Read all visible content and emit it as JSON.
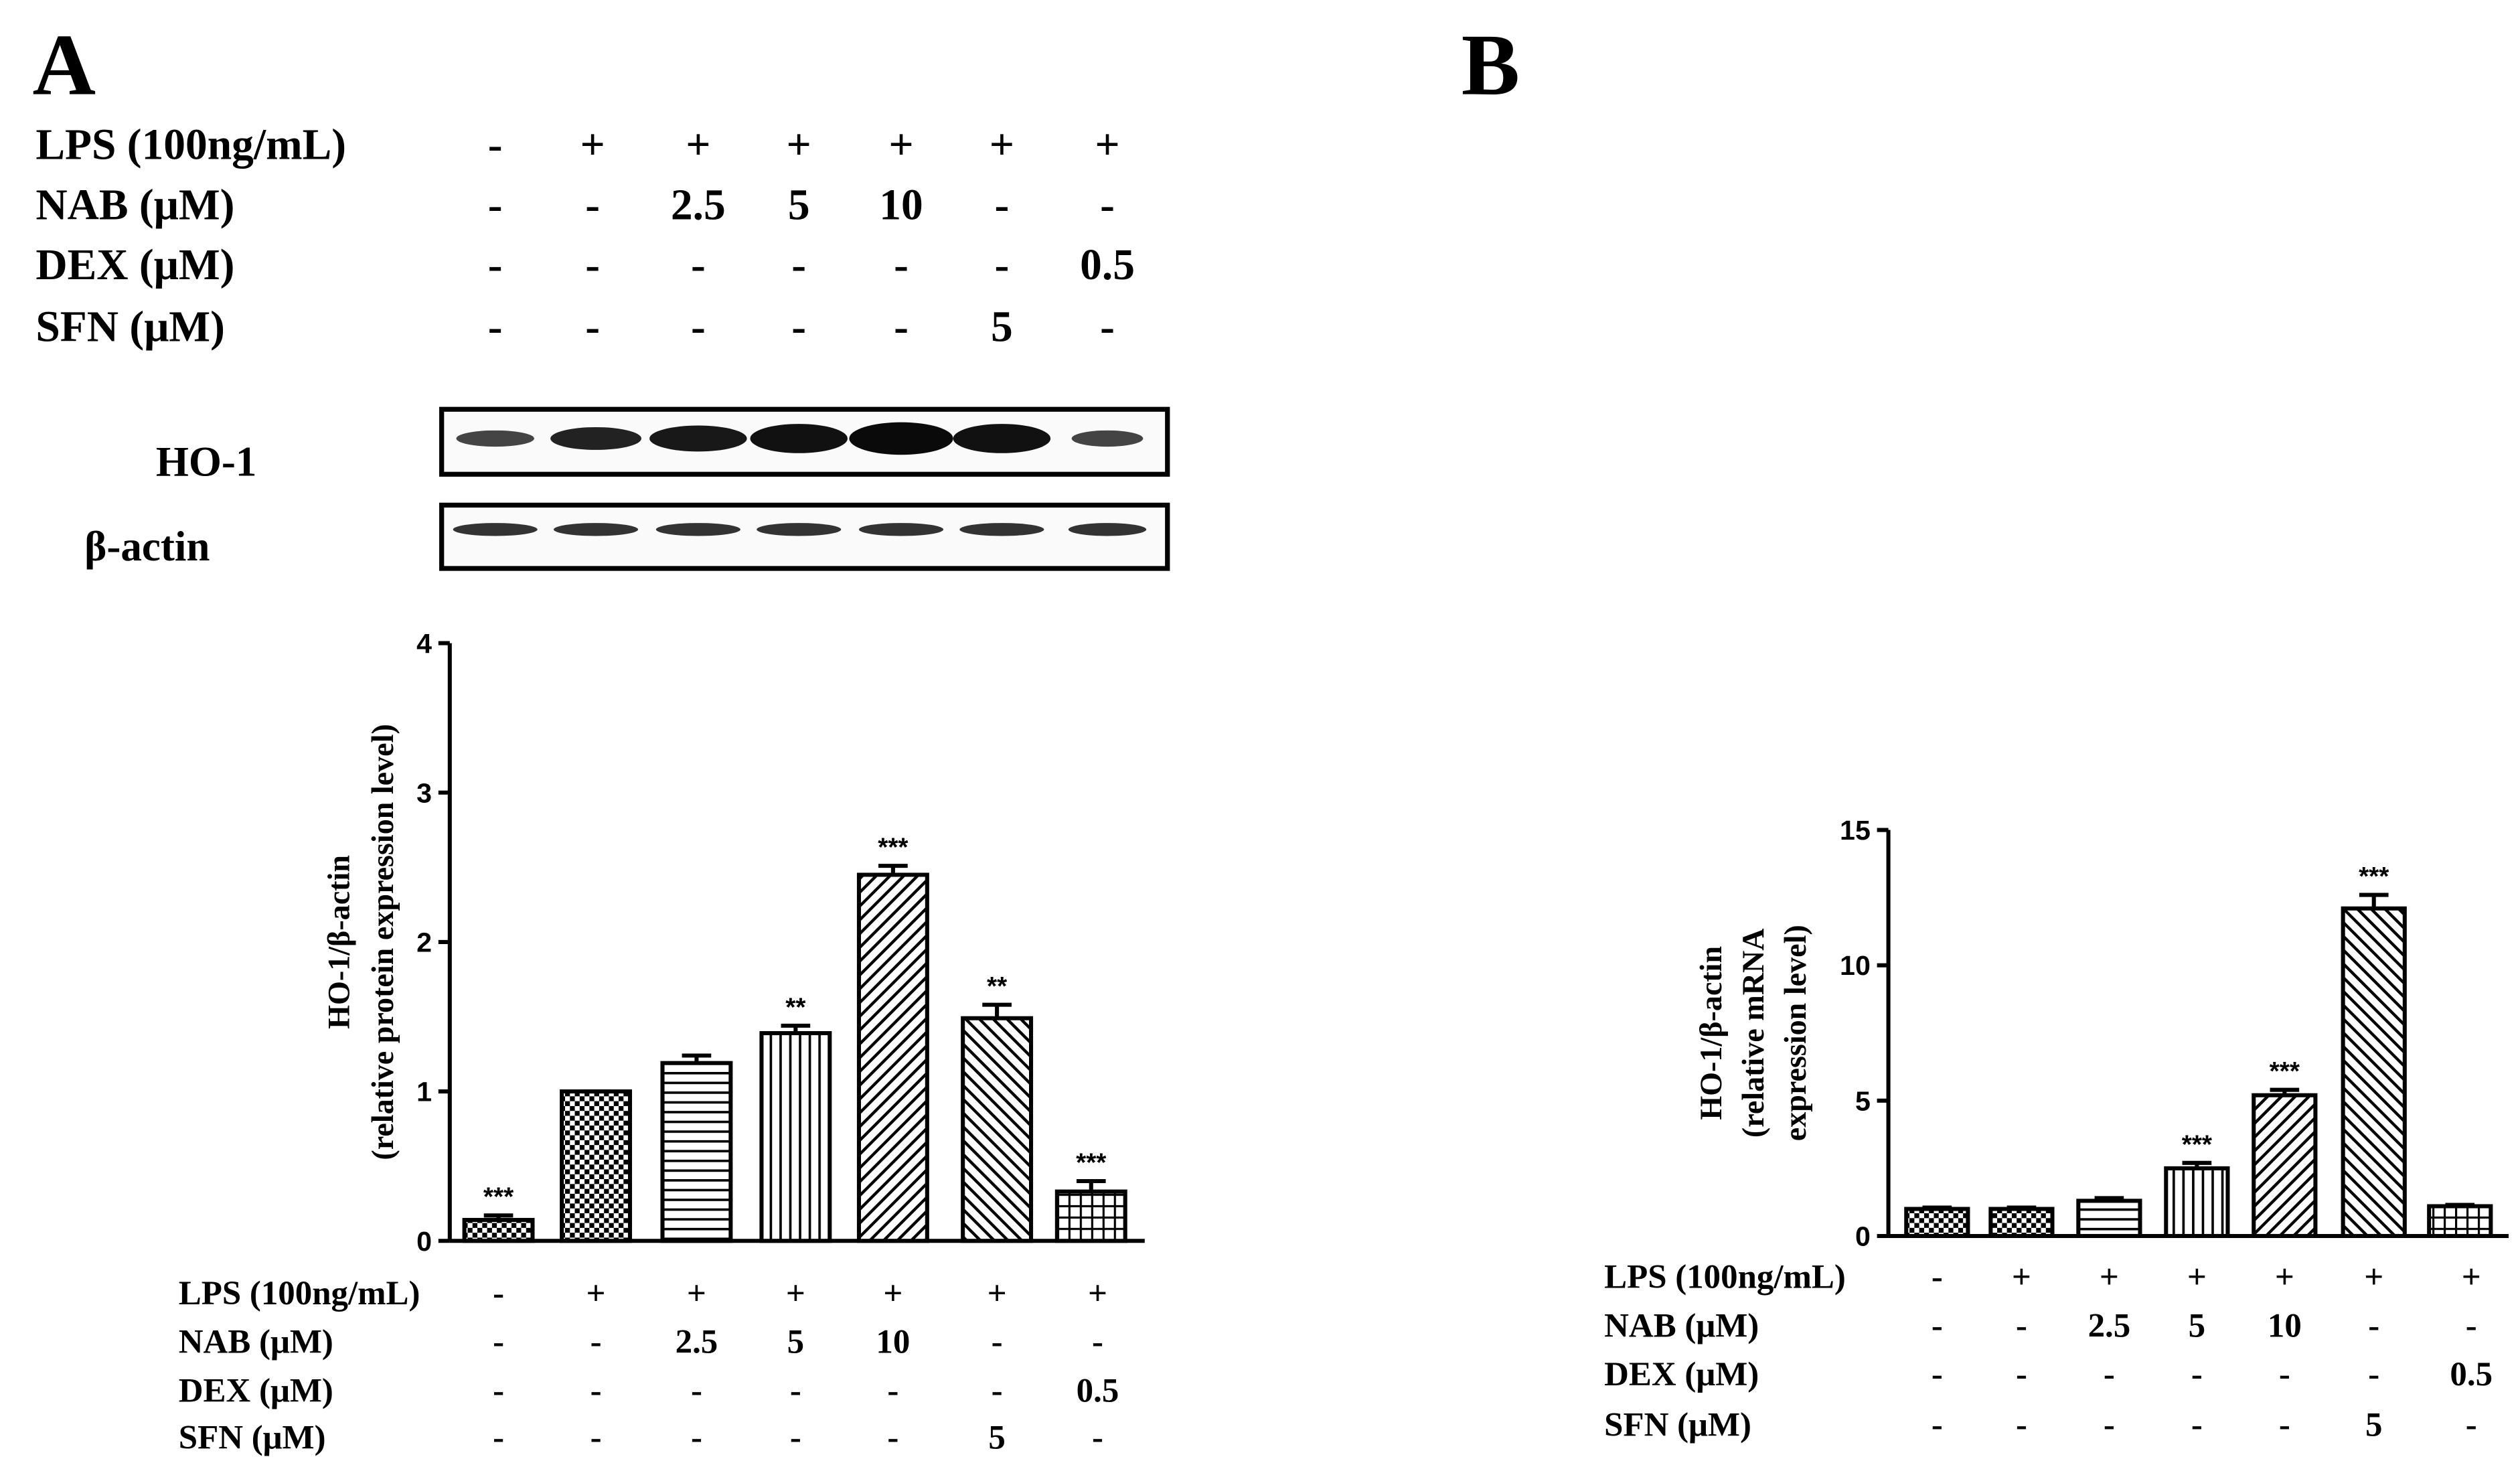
{
  "treatments": {
    "rows": [
      {
        "label": "LPS (100ng/mL)",
        "cells": [
          "-",
          "+",
          "+",
          "+",
          "+",
          "+",
          "+"
        ]
      },
      {
        "label": "NAB (μM)",
        "cells": [
          "-",
          "-",
          "2.5",
          "5",
          "10",
          "-",
          "-"
        ]
      },
      {
        "label": "DEX (μM)",
        "cells": [
          "-",
          "-",
          "-",
          "-",
          "-",
          "-",
          "0.5"
        ]
      },
      {
        "label": "SFN (μM)",
        "cells": [
          "-",
          "-",
          "-",
          "-",
          "-",
          "5",
          "-"
        ]
      }
    ]
  },
  "blot": {
    "bands": [
      "HO-1",
      "β-actin"
    ]
  },
  "chart_data": [
    {
      "type": "bar",
      "panel": "A",
      "ylabel": [
        "HO-1/β-actin",
        "(relative protein expression level)"
      ],
      "values": [
        0.14,
        1.0,
        1.19,
        1.39,
        2.45,
        1.49,
        0.33
      ],
      "errors": [
        0.03,
        0.0,
        0.05,
        0.05,
        0.06,
        0.09,
        0.07
      ],
      "annotations": [
        "***",
        null,
        null,
        "**",
        "***",
        "**",
        "***"
      ],
      "patterns": [
        "checker",
        "checker",
        "hlines",
        "vlines",
        "diag-up",
        "diag-down",
        "grid"
      ],
      "color": "#000000",
      "ylim": [
        0,
        4
      ],
      "yticks": [
        0,
        1,
        2,
        3,
        4
      ]
    },
    {
      "type": "bar",
      "panel": "B",
      "ylabel": [
        "HO-1/β-actin",
        "(relative mRNA",
        "expression level)"
      ],
      "values": [
        1.0,
        1.0,
        1.3,
        2.5,
        5.2,
        12.1,
        1.1
      ],
      "errors": [
        0.05,
        0.05,
        0.1,
        0.2,
        0.2,
        0.5,
        0.05
      ],
      "annotations": [
        null,
        null,
        null,
        "***",
        "***",
        "***",
        null
      ],
      "patterns": [
        "checker",
        "checker",
        "hlines",
        "vlines",
        "diag-up",
        "diag-down",
        "grid"
      ],
      "color": "#000000",
      "ylim": [
        0,
        15
      ],
      "yticks": [
        0,
        5,
        10,
        15
      ]
    }
  ]
}
